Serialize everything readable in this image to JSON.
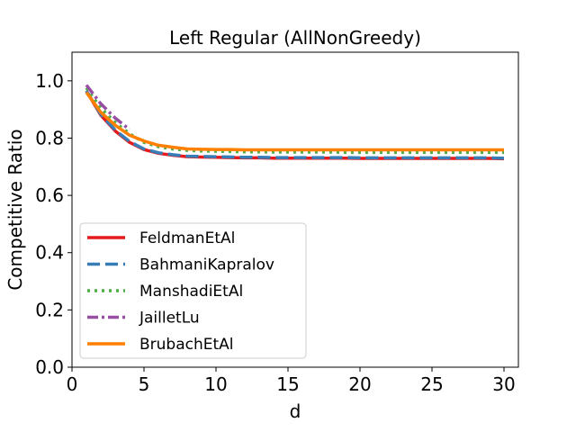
{
  "chart_data": {
    "type": "line",
    "title": "Left Regular (AllNonGreedy)",
    "xlabel": "d",
    "ylabel": "Competitive Ratio",
    "xlim": [
      0,
      31
    ],
    "ylim": [
      0.0,
      1.1
    ],
    "xticks": [
      0,
      5,
      10,
      15,
      20,
      25,
      30
    ],
    "yticks": [
      0.0,
      0.2,
      0.4,
      0.6,
      0.8,
      1.0
    ],
    "xtick_labels": [
      "0",
      "5",
      "10",
      "15",
      "20",
      "25",
      "30"
    ],
    "ytick_labels": [
      "0.0",
      "0.2",
      "0.4",
      "0.6",
      "0.8",
      "1.0"
    ],
    "grid": false,
    "legend_position": "lower-left",
    "x": [
      1,
      2,
      3,
      4,
      5,
      6,
      7,
      8,
      9,
      10,
      11,
      12,
      13,
      14,
      15,
      16,
      17,
      18,
      19,
      20,
      21,
      22,
      23,
      24,
      25,
      26,
      27,
      28,
      29,
      30
    ],
    "series": [
      {
        "name": "FeldmanEtAl",
        "color": "#e41a1c",
        "dash": "solid",
        "values": [
          0.965,
          0.88,
          0.825,
          0.785,
          0.76,
          0.747,
          0.74,
          0.735,
          0.734,
          0.733,
          0.732,
          0.731,
          0.731,
          0.73,
          0.73,
          0.73,
          0.73,
          0.73,
          0.73,
          0.729,
          0.729,
          0.729,
          0.729,
          0.729,
          0.729,
          0.729,
          0.729,
          0.729,
          0.729,
          0.728
        ]
      },
      {
        "name": "BahmaniKapralov",
        "color": "#377eb8",
        "dash": "dashed",
        "values": [
          0.965,
          0.883,
          0.828,
          0.788,
          0.762,
          0.749,
          0.742,
          0.737,
          0.736,
          0.735,
          0.734,
          0.733,
          0.733,
          0.732,
          0.732,
          0.732,
          0.732,
          0.732,
          0.732,
          0.731,
          0.731,
          0.731,
          0.731,
          0.731,
          0.731,
          0.731,
          0.731,
          0.731,
          0.731,
          0.73
        ]
      },
      {
        "name": "ManshadiEtAl",
        "color": "#4daf4a",
        "dash": "dotted",
        "values": [
          0.975,
          0.905,
          0.855,
          0.815,
          0.785,
          0.77,
          0.762,
          0.757,
          0.755,
          0.754,
          0.753,
          0.752,
          0.752,
          0.751,
          0.751,
          0.751,
          0.751,
          0.751,
          0.75,
          0.75,
          0.75,
          0.75,
          0.75,
          0.75,
          0.75,
          0.75,
          0.75,
          0.75,
          0.75,
          0.75
        ]
      },
      {
        "name": "JailletLu",
        "color": "#984ea3",
        "dash": "dashdot",
        "values": [
          0.985,
          0.92,
          0.87,
          0.83,
          null,
          null,
          null,
          null,
          null,
          null,
          null,
          null,
          null,
          null,
          null,
          null,
          null,
          null,
          null,
          null,
          null,
          null,
          null,
          null,
          null,
          null,
          null,
          null,
          null,
          null
        ]
      },
      {
        "name": "BrubachEtAl",
        "color": "#ff7f00",
        "dash": "solid",
        "values": [
          0.96,
          0.89,
          0.845,
          0.81,
          0.79,
          0.775,
          0.768,
          0.762,
          0.761,
          0.76,
          0.76,
          0.759,
          0.759,
          0.759,
          0.759,
          0.759,
          0.759,
          0.759,
          0.759,
          0.759,
          0.759,
          0.759,
          0.759,
          0.759,
          0.759,
          0.759,
          0.759,
          0.759,
          0.759,
          0.759
        ]
      }
    ]
  }
}
